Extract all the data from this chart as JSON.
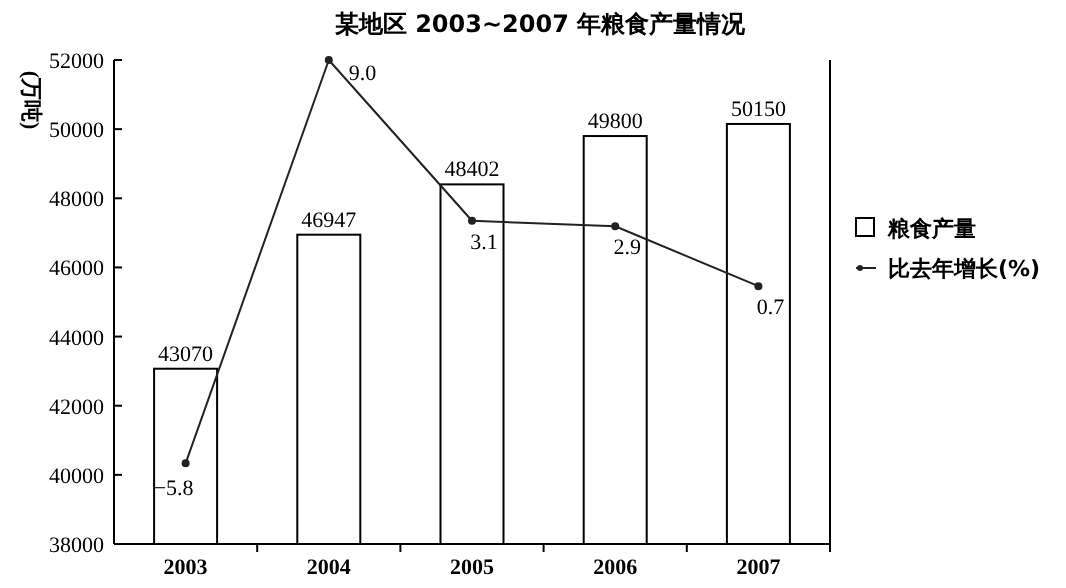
{
  "chart_data": {
    "type": "bar",
    "title": "某地区 2003~2007 年粮食产量情况",
    "ylabel": "(万吨)",
    "categories": [
      "2003",
      "2004",
      "2005",
      "2006",
      "2007"
    ],
    "series": [
      {
        "name": "粮食产量",
        "color": "#ffffff",
        "values": [
          43070,
          46947,
          48402,
          49800,
          50150
        ]
      },
      {
        "name": "比去年增长(%)",
        "type": "line",
        "axis": "y2",
        "color": "#222222",
        "values": [
          -5.8,
          9.0,
          3.1,
          2.9,
          0.7
        ],
        "value_labels": [
          "−5.8",
          "9.0",
          "3.1",
          "2.9",
          "0.7"
        ]
      }
    ],
    "ylim": [
      38000,
      52000
    ],
    "yticks": [
      38000,
      40000,
      42000,
      44000,
      46000,
      48000,
      50000,
      52000
    ],
    "data_labels": true,
    "legend": "right",
    "marker": "circle",
    "line_style": "solid",
    "grid": false
  }
}
